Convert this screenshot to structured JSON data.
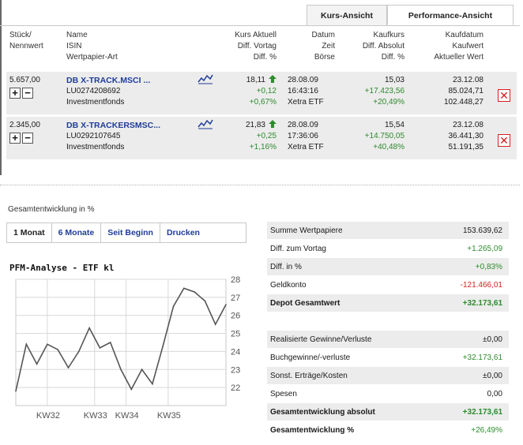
{
  "tabs": {
    "kurs": "Kurs-Ansicht",
    "performance": "Performance-Ansicht"
  },
  "headers": {
    "stueck": "Stück/",
    "nennwert": "Nennwert",
    "name": "Name",
    "isin": "ISIN",
    "art": "Wertpapier-Art",
    "kurs_aktuell": "Kurs Aktuell",
    "diff_vortag": "Diff. Vortag",
    "diff_pct": "Diff. %",
    "datum": "Datum",
    "zeit": "Zeit",
    "boerse": "Börse",
    "kaufkurs": "Kaufkurs",
    "diff_absolut": "Diff. Absolut",
    "diff_pct2": "Diff. %",
    "kaufdatum": "Kaufdatum",
    "kaufwert": "Kaufwert",
    "aktueller_wert": "Aktueller Wert"
  },
  "positions": [
    {
      "stueck": "5.657,00",
      "name": "DB X-TRACK.MSCI ...",
      "isin": "LU0274208692",
      "art": "Investmentfonds",
      "kurs": "18,11",
      "diff_vortag": "+0,12",
      "diff_pct": "+0,67%",
      "datum": "28.08.09",
      "zeit": "16:43:16",
      "boerse": "Xetra ETF",
      "kaufkurs": "15,03",
      "diff_absolut": "+17.423,56",
      "diff_pct2": "+20,49%",
      "kaufdatum": "23.12.08",
      "kaufwert": "85.024,71",
      "aktueller_wert": "102.448,27"
    },
    {
      "stueck": "2.345,00",
      "name": "DB X-TRACKERSMSC...",
      "isin": "LU0292107645",
      "art": "Investmentfonds",
      "kurs": "21,83",
      "diff_vortag": "+0,25",
      "diff_pct": "+1,16%",
      "datum": "28.08.09",
      "zeit": "17:36:06",
      "boerse": "Xetra ETF",
      "kaufkurs": "15,54",
      "diff_absolut": "+14.750,05",
      "diff_pct2": "+40,48%",
      "kaufdatum": "23.12.08",
      "kaufwert": "36.441,30",
      "aktueller_wert": "51.191,35"
    }
  ],
  "icons": {
    "plus": "+",
    "minus": "−",
    "close": "✕"
  },
  "section_title": "Gesamtentwicklung in %",
  "period_tabs": [
    "1 Monat",
    "6 Monate",
    "Seit Beginn",
    "Drucken"
  ],
  "chart_data": {
    "type": "line",
    "title": "PFM-Analyse - ETF kl",
    "ylim": [
      21,
      28
    ],
    "y_ticks": [
      "28",
      "27",
      "26",
      "25",
      "24",
      "23",
      "22"
    ],
    "x_ticks": [
      "KW32",
      "KW33",
      "KW34",
      "KW35"
    ],
    "series": [
      {
        "x": [
          0,
          1,
          2,
          3,
          4,
          5,
          6,
          7,
          8,
          9,
          10,
          11,
          12,
          13,
          14,
          15,
          16,
          17,
          18,
          19,
          20
        ],
        "values": [
          21.8,
          24.4,
          23.3,
          24.4,
          24.1,
          23.1,
          24.0,
          25.3,
          24.2,
          24.5,
          23.0,
          21.9,
          23.0,
          22.2,
          24.3,
          26.5,
          27.5,
          27.3,
          26.8,
          25.5,
          26.6
        ]
      }
    ],
    "grid": true
  },
  "summary": [
    {
      "label": "Summe Wertpapiere",
      "value": "153.639,62",
      "cls": ""
    },
    {
      "label": "Diff. zum Vortag",
      "value": "+1.265,09",
      "cls": "green"
    },
    {
      "label": "Diff. in %",
      "value": "+0,83%",
      "cls": "green"
    },
    {
      "label": "Geldkonto",
      "value": "-121.466,01",
      "cls": "red"
    },
    {
      "label": "Depot Gesamtwert",
      "value": "+32.173,61",
      "cls": "green bold",
      "labcls": "bold"
    }
  ],
  "summary2": [
    {
      "label": "Realisierte Gewinne/Verluste",
      "value": "±0,00",
      "cls": ""
    },
    {
      "label": "Buchgewinne/-verluste",
      "value": "+32.173,61",
      "cls": "green"
    },
    {
      "label": "Sonst. Erträge/Kosten",
      "value": "±0,00",
      "cls": ""
    },
    {
      "label": "Spesen",
      "value": "0,00",
      "cls": ""
    },
    {
      "label": "Gesamtentwicklung absolut",
      "value": "+32.173,61",
      "cls": "green bold",
      "labcls": "bold"
    },
    {
      "label": "Gesamtentwicklung %",
      "value": "+26,49%",
      "cls": "green",
      "labcls": "bold"
    }
  ]
}
